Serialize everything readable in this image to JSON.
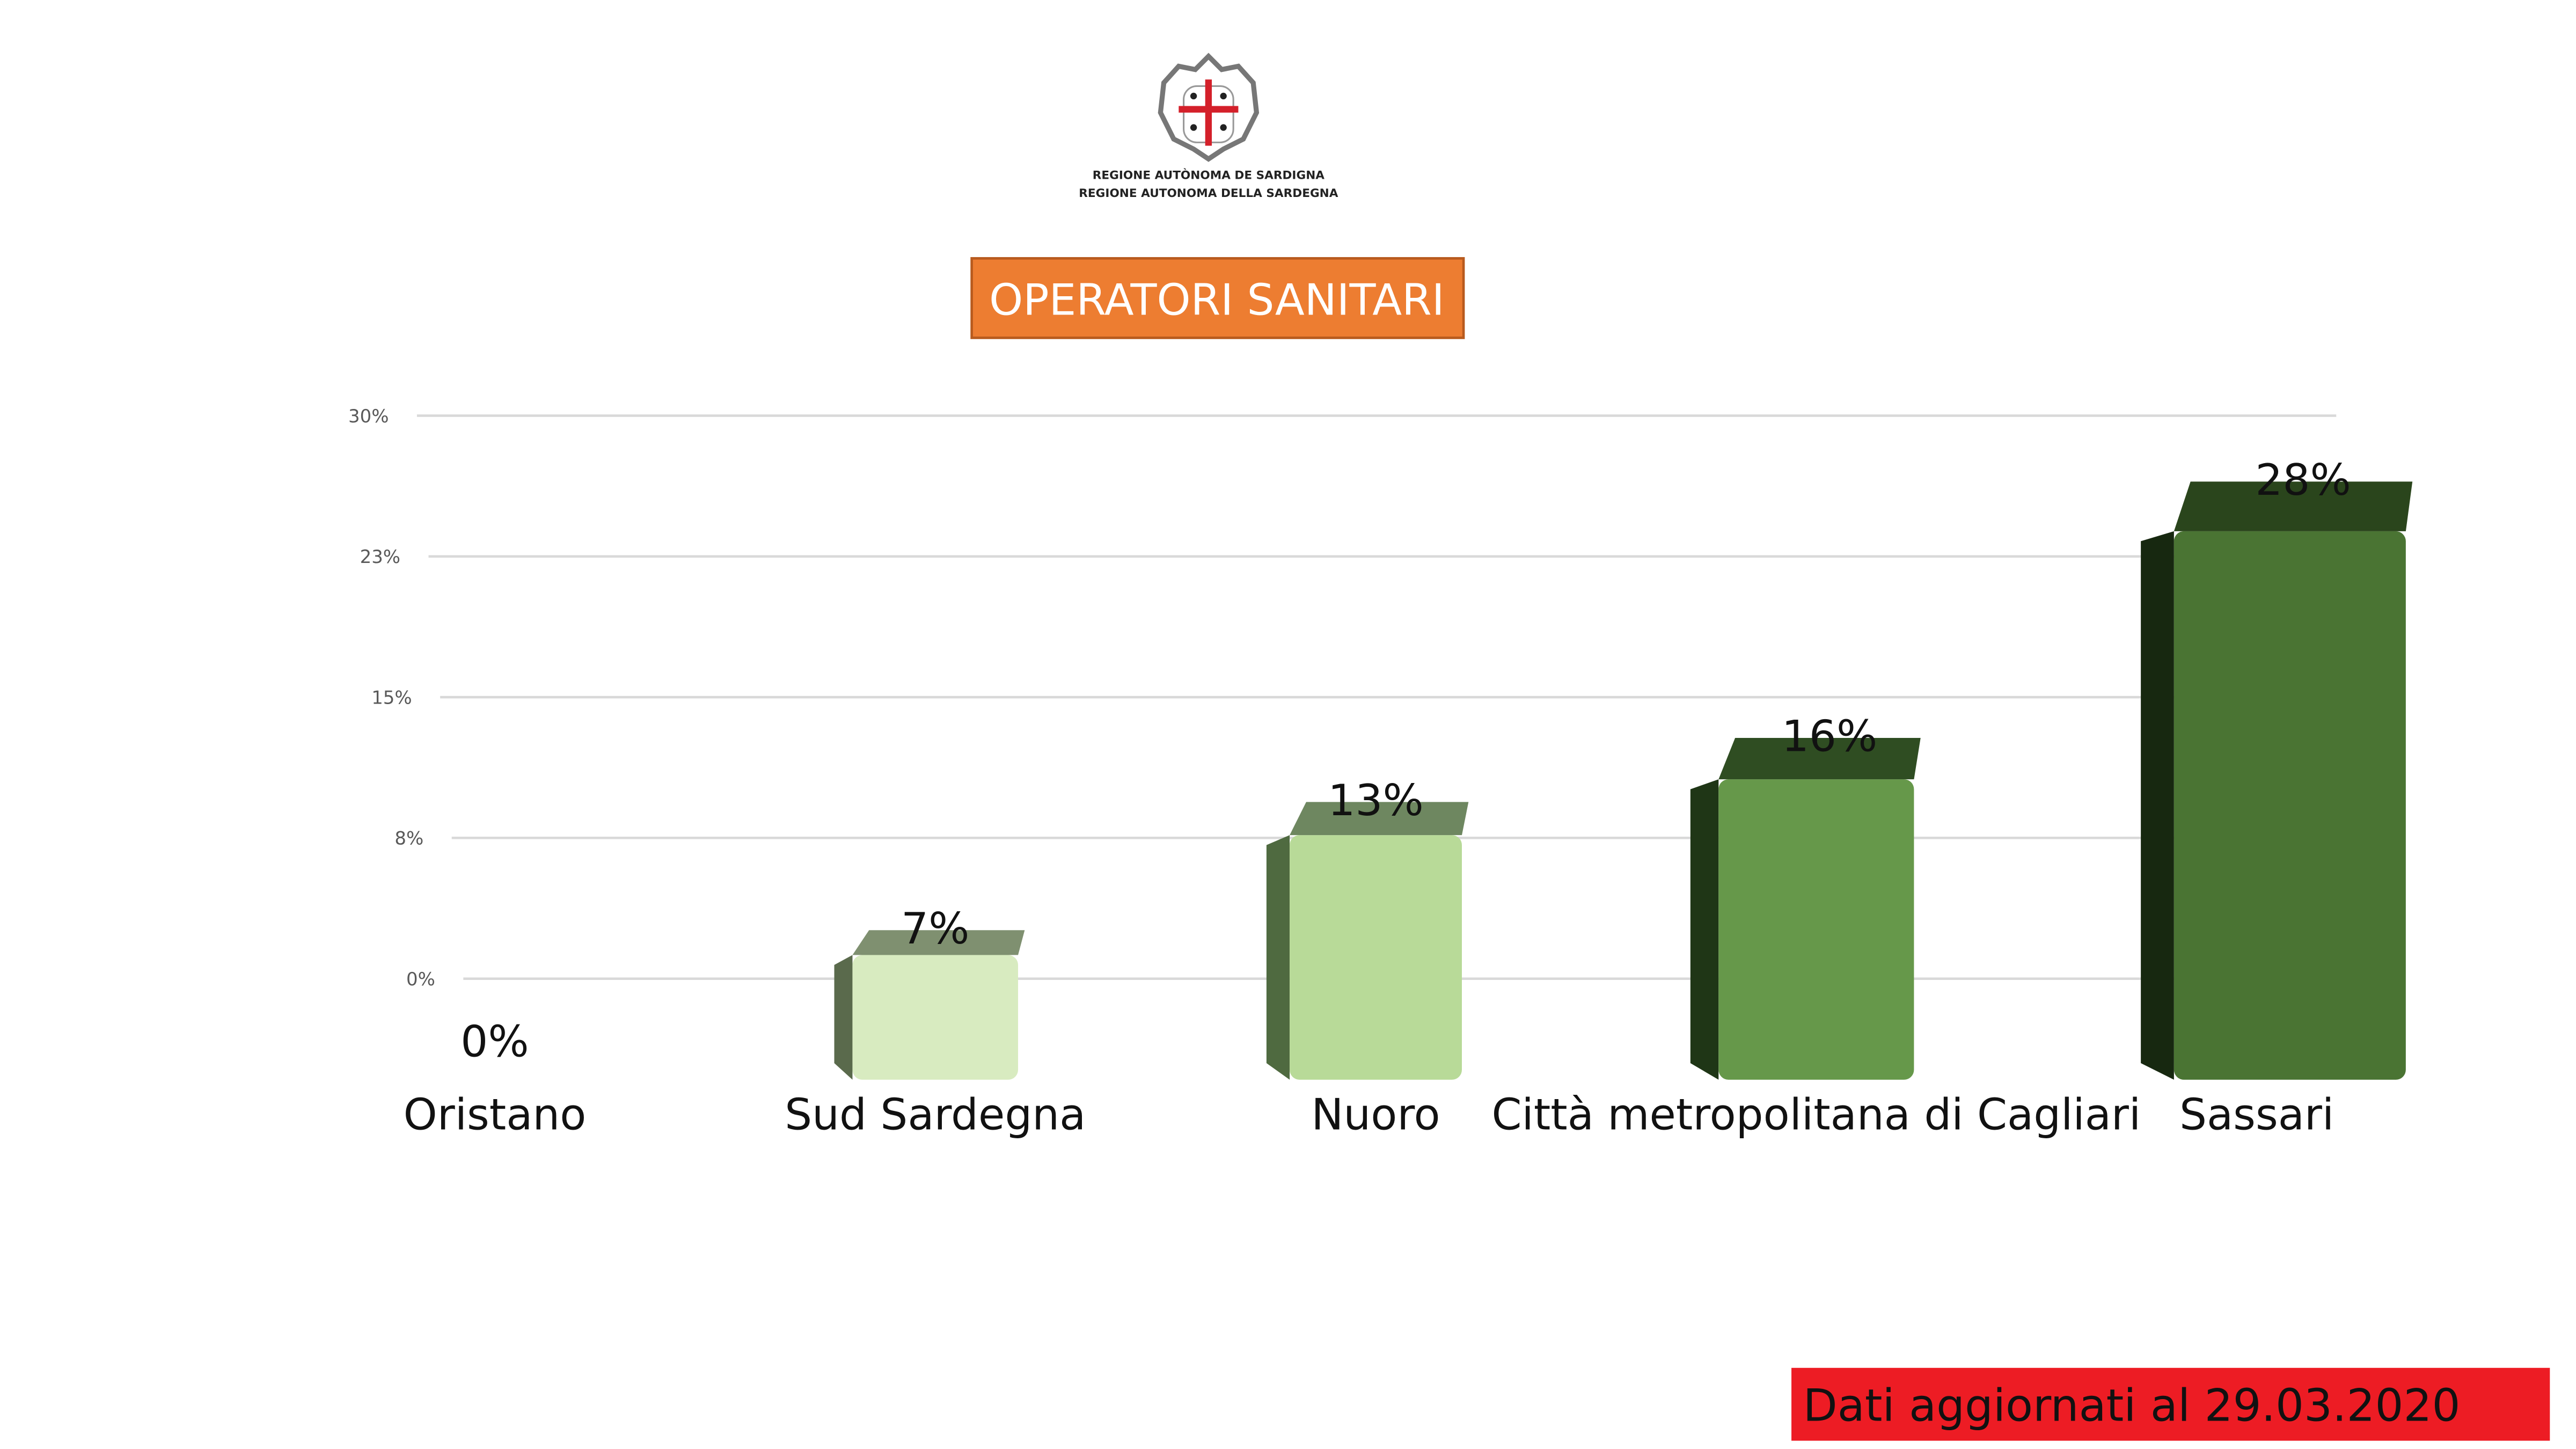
{
  "logo": {
    "line1": "REGIONE AUTÒNOMA DE SARDIGNA",
    "line2": "REGIONE AUTONOMA DELLA SARDEGNA"
  },
  "title": "OPERATORI SANITARI",
  "footer": "Dati aggiornati al 29.03.2020",
  "colors": {
    "title_bg": "#ED7D31",
    "footer_bg": "#ED1C24",
    "cross": "#D4202A"
  },
  "chart_data": {
    "type": "bar",
    "title": "OPERATORI SANITARI",
    "categories": [
      "Oristano",
      "Sud Sardegna",
      "Nuoro",
      "Città metropolitana di Cagliari",
      "Sassari"
    ],
    "values": [
      0,
      7,
      13,
      16,
      28
    ],
    "data_labels": [
      "0%",
      "7%",
      "13%",
      "16%",
      "28%"
    ],
    "yticks": [
      "0%",
      "8%",
      "15%",
      "23%",
      "30%"
    ],
    "ytick_values": [
      0,
      7.5,
      15,
      22.5,
      30
    ],
    "ylim": [
      0,
      30
    ],
    "grid": true,
    "xlabel": "",
    "ylabel": "",
    "bar_colors": [
      {
        "front": "#e8f3d8",
        "top": "#8a9a78",
        "side": "#5d6b50"
      },
      {
        "front": "#d8ebc0",
        "top": "#7f9070",
        "side": "#5a6a4c"
      },
      {
        "front": "#b8da98",
        "top": "#6e8760",
        "side": "#4f6a40"
      },
      {
        "front": "#66984a",
        "top": "#2f4d22",
        "side": "#1f3616"
      },
      {
        "front": "#4a7433",
        "top": "#2a451c",
        "side": "#172810"
      }
    ]
  }
}
